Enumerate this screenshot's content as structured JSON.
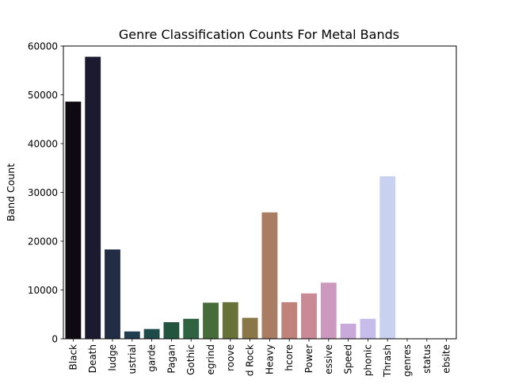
{
  "chart_data": {
    "type": "bar",
    "title": "Genre Classification Counts For Metal Bands",
    "xlabel": "",
    "ylabel": "Band Count",
    "ylim": [
      0,
      60000
    ],
    "yticks": [
      "0",
      "10000",
      "20000",
      "30000",
      "40000",
      "50000",
      "60000"
    ],
    "grid": false,
    "categories": [
      "Black",
      "Death",
      "ludge",
      "ustrial",
      "garde",
      "Pagan",
      "Gothic",
      "egrind",
      "roove",
      "d Rock",
      "Heavy",
      "hcore",
      "Power",
      "essive",
      "Speed",
      "phonic",
      "Thrash",
      "genres",
      "status",
      "ebsite"
    ],
    "values": [
      48600,
      57800,
      18300,
      1500,
      2000,
      3400,
      4100,
      7400,
      7500,
      4300,
      25900,
      7500,
      9300,
      11500,
      3100,
      4100,
      33300,
      0,
      0,
      0
    ],
    "colors": [
      "#0f0a12",
      "#1b1a2e",
      "#222c45",
      "#213d4f",
      "#1f4a4a",
      "#23543e",
      "#2f6342",
      "#466c3a",
      "#677138",
      "#8a7748",
      "#a87d64",
      "#c0837b",
      "#c98a96",
      "#cc98bd",
      "#c9a8da",
      "#c6bdeb",
      "#c8d1ef",
      "#d3e0f2",
      "#dde8f4",
      "#e8f0f6"
    ]
  }
}
